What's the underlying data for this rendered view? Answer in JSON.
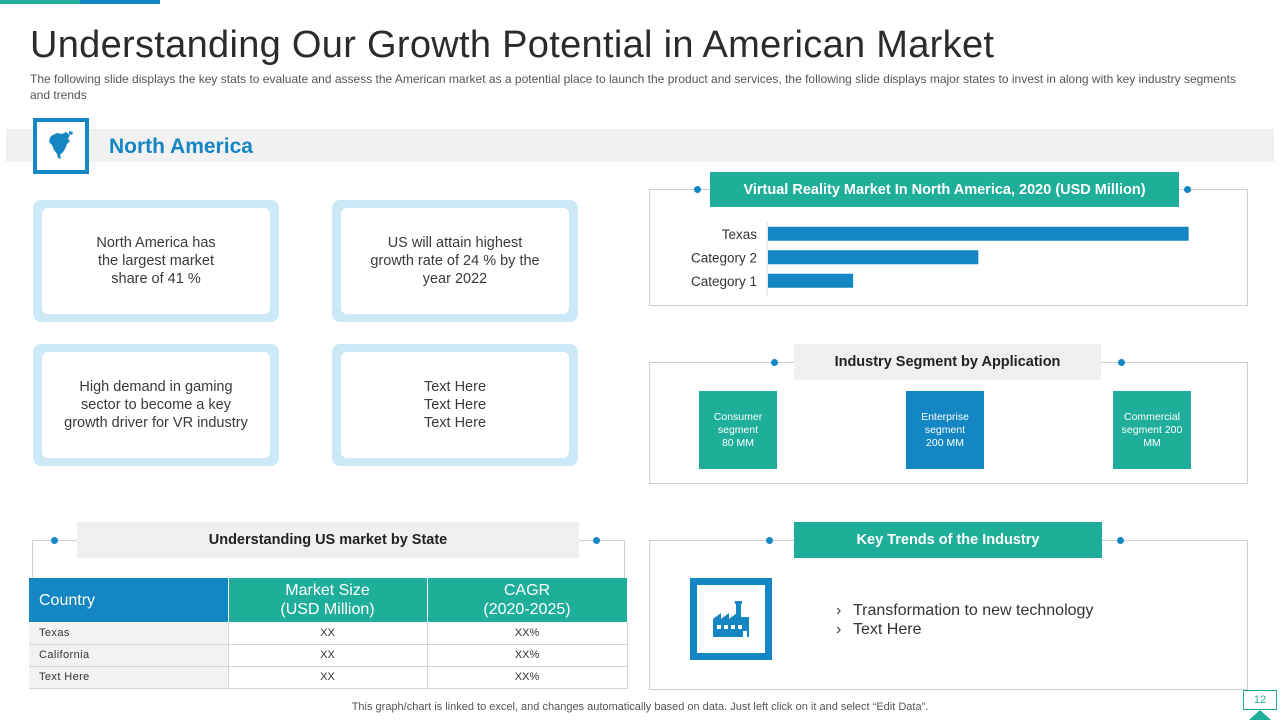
{
  "page": {
    "title": "Understanding Our Growth Potential in American Market",
    "subtitle": "The following  slide displays the key stats to evaluate  and assess the American market as a potential place to launch the product and services, the following  slide displays major states to invest in along with key industry segments and trends"
  },
  "region": {
    "icon": "north-america-map-icon",
    "title": "North America"
  },
  "stat_cards": [
    {
      "text": "North America has\nthe largest market\nshare of 41 %"
    },
    {
      "text": "US will attain highest\ngrowth rate of 24 % by the\nyear 2022"
    },
    {
      "text": "High demand in gaming\nsector to become a key\ngrowth driver for VR industry"
    },
    {
      "text": "Text Here\nText Here\nText Here"
    }
  ],
  "vr_market": {
    "header": "Virtual Reality Market In North America,  2020 (USD Million)"
  },
  "chart_data": {
    "type": "bar",
    "orientation": "horizontal",
    "title": "Virtual Reality Market In North America,  2020 (USD Million)",
    "categories": [
      "Texas",
      "Category 2",
      "Category 1"
    ],
    "values": [
      4.3,
      2.15,
      0.87
    ],
    "xlim": [
      0,
      4.6
    ],
    "grid": false,
    "legend": "none",
    "color": "#1586c4"
  },
  "segments": {
    "header": "Industry Segment by Application",
    "items": [
      {
        "label": "Consumer\nsegment\n80 MM",
        "color": "#1fae9a"
      },
      {
        "label": "Enterprise\nsegment\n200 MM",
        "color": "#1586c4"
      },
      {
        "label": "Commercial\nsegment 200\nMM",
        "color": "#1fae9a"
      }
    ]
  },
  "state_table": {
    "header": "Understanding US market by State",
    "columns": [
      "Country",
      "Market Size\n(USD Million)",
      "CAGR\n(2020-2025)"
    ],
    "rows": [
      [
        "Texas",
        "XX",
        "XX%"
      ],
      [
        "California",
        "XX",
        "XX%"
      ],
      [
        "Text Here",
        "XX",
        "XX%"
      ]
    ]
  },
  "trends": {
    "header": "Key Trends of the Industry",
    "icon": "factory-icon",
    "items": [
      "Transformation to new technology",
      "Text Here"
    ]
  },
  "footer": {
    "note": "This graph/chart is linked to excel,  and changes automatically based on data. Just left click on it and select “Edit Data”.",
    "page_number": "12"
  },
  "colors": {
    "teal": "#1fae9a",
    "blue": "#1586c4",
    "light_blue": "#cde8f6",
    "light_gray": "#f0f0f0"
  }
}
